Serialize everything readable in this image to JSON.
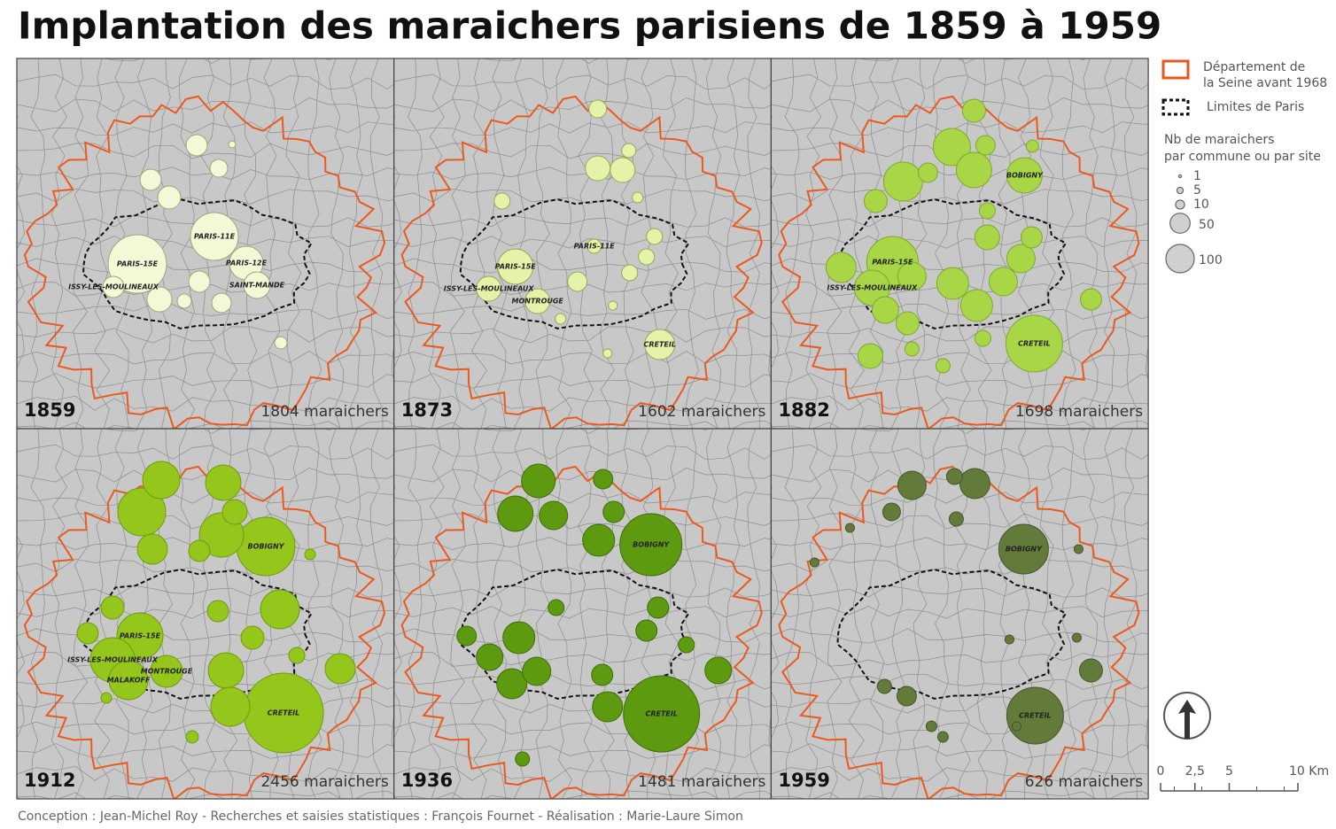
{
  "title": "Implantation des maraichers parisiens de 1859 à 1959",
  "panels": [
    {
      "year": "1859",
      "count": "1804 maraichers",
      "sites": [
        {
          "value": 425,
          "label": "PARIS-15E"
        },
        {
          "value": 285,
          "label": "PARIS-11E"
        },
        {
          "value": 141,
          "label": "PARIS-12E"
        },
        {
          "value": 88,
          "label": "SAINT-MANDE"
        },
        {
          "value": 56,
          "label": "ISSY-LES-MOULINEAUX"
        },
        {
          "value": 56
        },
        {
          "value": 56
        },
        {
          "value": 66
        },
        {
          "value": 39
        },
        {
          "value": 77
        },
        {
          "value": 56
        },
        {
          "value": 47
        },
        {
          "value": 25
        },
        {
          "value": 19
        },
        {
          "value": 6
        }
      ]
    },
    {
      "year": "1873",
      "count": "1602 maraichers",
      "sites": [
        {
          "value": 156,
          "label": "PARIS-15E"
        },
        {
          "value": 25,
          "label": "PARIS-11E"
        },
        {
          "value": 77,
          "label": "ISSY-LES-MOULINEAUX"
        },
        {
          "value": 77,
          "label": "MONTROUGE"
        },
        {
          "value": 113,
          "label": "CRETEIL"
        },
        {
          "value": 77
        },
        {
          "value": 77
        },
        {
          "value": 39
        },
        {
          "value": 47
        },
        {
          "value": 32
        },
        {
          "value": 32
        },
        {
          "value": 32
        },
        {
          "value": 32
        },
        {
          "value": 25
        },
        {
          "value": 14
        },
        {
          "value": 14
        },
        {
          "value": 10
        },
        {
          "value": 10
        }
      ]
    },
    {
      "year": "1882",
      "count": "1698 maraichers",
      "sites": [
        {
          "value": 329,
          "label": "PARIS-15E"
        },
        {
          "value": 156,
          "label": "ISSY-LES-MOULINEAUX"
        },
        {
          "value": 156,
          "label": "BOBIGNY"
        },
        {
          "value": 400,
          "label": "CRETEIL"
        },
        {
          "value": 189
        },
        {
          "value": 172
        },
        {
          "value": 156
        },
        {
          "value": 113
        },
        {
          "value": 127
        },
        {
          "value": 127
        },
        {
          "value": 100
        },
        {
          "value": 100
        },
        {
          "value": 77
        },
        {
          "value": 100
        },
        {
          "value": 88
        },
        {
          "value": 77
        },
        {
          "value": 66
        },
        {
          "value": 47
        },
        {
          "value": 47
        },
        {
          "value": 66
        },
        {
          "value": 56
        },
        {
          "value": 56
        },
        {
          "value": 66
        },
        {
          "value": 32
        },
        {
          "value": 25
        },
        {
          "value": 25
        },
        {
          "value": 32
        },
        {
          "value": 19
        }
      ]
    },
    {
      "year": "1912",
      "count": "2456 maraichers",
      "sites": [
        {
          "value": 791,
          "label": "CRETEIL"
        },
        {
          "value": 425,
          "label": "BOBIGNY"
        },
        {
          "value": 264,
          "label": "PARIS-15E"
        },
        {
          "value": 244,
          "label": "ISSY-LES-MOULINEAUX"
        },
        {
          "value": 189,
          "label": "MALAKOFF"
        },
        {
          "value": 127,
          "label": "MONTROUGE"
        },
        {
          "value": 285
        },
        {
          "value": 244
        },
        {
          "value": 172
        },
        {
          "value": 156
        },
        {
          "value": 189
        },
        {
          "value": 156
        },
        {
          "value": 189
        },
        {
          "value": 113
        },
        {
          "value": 113
        },
        {
          "value": 66
        },
        {
          "value": 66
        },
        {
          "value": 56
        },
        {
          "value": 77
        },
        {
          "value": 56
        },
        {
          "value": 56
        },
        {
          "value": 32
        },
        {
          "value": 19
        },
        {
          "value": 14
        },
        {
          "value": 14
        }
      ]
    },
    {
      "year": "1936",
      "count": "1481 maraichers",
      "sites": [
        {
          "value": 722,
          "label": "CRETEIL"
        },
        {
          "value": 479,
          "label": "BOBIGNY"
        },
        {
          "value": 141
        },
        {
          "value": 156
        },
        {
          "value": 100
        },
        {
          "value": 127
        },
        {
          "value": 56
        },
        {
          "value": 47
        },
        {
          "value": 127
        },
        {
          "value": 88
        },
        {
          "value": 113
        },
        {
          "value": 100
        },
        {
          "value": 113
        },
        {
          "value": 88
        },
        {
          "value": 56
        },
        {
          "value": 56
        },
        {
          "value": 56
        },
        {
          "value": 32
        },
        {
          "value": 47
        },
        {
          "value": 25
        },
        {
          "value": 32
        }
      ]
    },
    {
      "year": "1959",
      "count": "626 maraichers",
      "sites": [
        {
          "value": 400,
          "label": "CRETEIL"
        },
        {
          "value": 306,
          "label": "BOBIGNY"
        },
        {
          "value": 100
        },
        {
          "value": 113
        },
        {
          "value": 32
        },
        {
          "value": 66
        },
        {
          "value": 39
        },
        {
          "value": 47
        },
        {
          "value": 25
        },
        {
          "value": 25
        },
        {
          "value": 14
        },
        {
          "value": 14
        },
        {
          "value": 10
        },
        {
          "value": 10
        },
        {
          "value": 10
        },
        {
          "value": 10
        },
        {
          "value": 10
        },
        {
          "value": 10
        }
      ]
    }
  ],
  "legend": {
    "seine": [
      "Département de",
      "la Seine avant 1968"
    ],
    "paris": "Limites de Paris",
    "size_title": [
      "Nb de maraichers",
      "par commune ou par site"
    ],
    "sizes": [
      1,
      5,
      10,
      50,
      100
    ]
  },
  "scale": {
    "ticks": [
      0,
      {
        "value": 2.5,
        "label": "2,5"
      },
      5,
      {
        "value": 10,
        "label": "10 Km"
      }
    ]
  },
  "credit": "Conception : Jean-Michel Roy - Recherches et saisies statistiques : François Fournet - Réalisation : Marie-Laure Simon"
}
